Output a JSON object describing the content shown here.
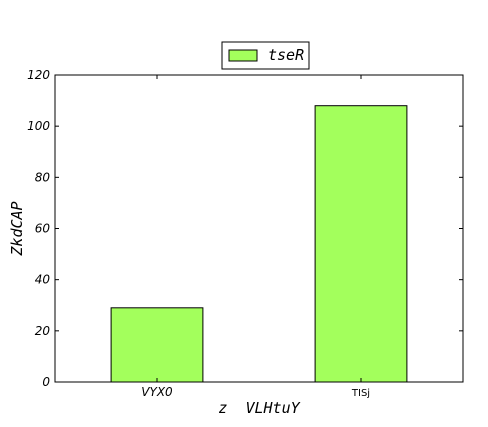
{
  "chart_data": {
    "type": "bar",
    "categories": [
      "VYX0",
      "TISj"
    ],
    "series": [
      {
        "name": "tseR",
        "values": [
          29,
          108
        ],
        "color": "#a3ff5c"
      }
    ],
    "xlabel": "z  VLHtuY",
    "ylabel": "ZkdCAP",
    "ylim": [
      0,
      120
    ],
    "yticks": [
      0,
      20,
      40,
      60,
      80,
      100,
      120
    ],
    "grid": false,
    "legend": "top-center"
  }
}
